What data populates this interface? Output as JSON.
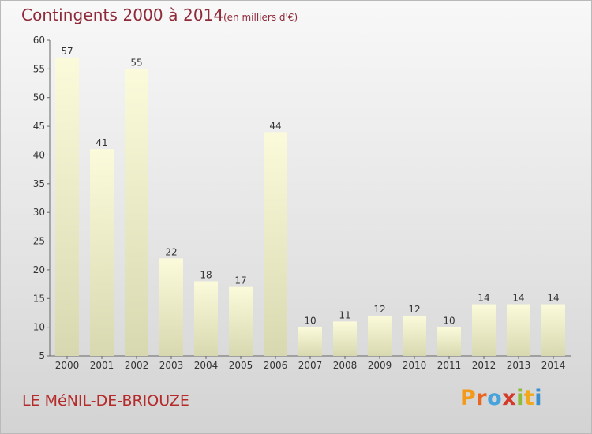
{
  "header": {
    "title": "Contingents 2000 à 2014",
    "subtitle": "(en milliers d'€)"
  },
  "footer": {
    "place": "LE MéNIL-DE-BRIOUZE",
    "logo": [
      "P",
      "r",
      "o",
      "x",
      "i",
      "t",
      "i"
    ]
  },
  "colors": {
    "bar_top": "#fbfbdb",
    "bar_bottom": "#d8d8b0",
    "title": "#8e2a3a",
    "place": "#b52a2a",
    "logo": [
      "#f39a1a",
      "#e8661f",
      "#48a3dc",
      "#d43a2a",
      "#8bbd3a",
      "#f0a81c",
      "#3a8fd0"
    ]
  },
  "chart_data": {
    "type": "bar",
    "title": "Contingents 2000 à 2014",
    "subtitle": "(en milliers d'€)",
    "categories": [
      "2000",
      "2001",
      "2002",
      "2003",
      "2004",
      "2005",
      "2006",
      "2007",
      "2008",
      "2009",
      "2010",
      "2011",
      "2012",
      "2013",
      "2014"
    ],
    "values": [
      57,
      41,
      55,
      22,
      18,
      17,
      44,
      10,
      11,
      12,
      12,
      10,
      14,
      14,
      14
    ],
    "value_labels": [
      "57",
      "41",
      "55",
      "22",
      "18",
      "17",
      "44",
      "10",
      "11",
      "12",
      "12",
      "10",
      "14",
      "14",
      "14"
    ],
    "yticks": [
      5,
      10,
      15,
      20,
      25,
      30,
      35,
      40,
      45,
      50,
      55,
      60
    ],
    "ylim": [
      5,
      60
    ],
    "grid": false,
    "xlabel": "",
    "ylabel": ""
  }
}
